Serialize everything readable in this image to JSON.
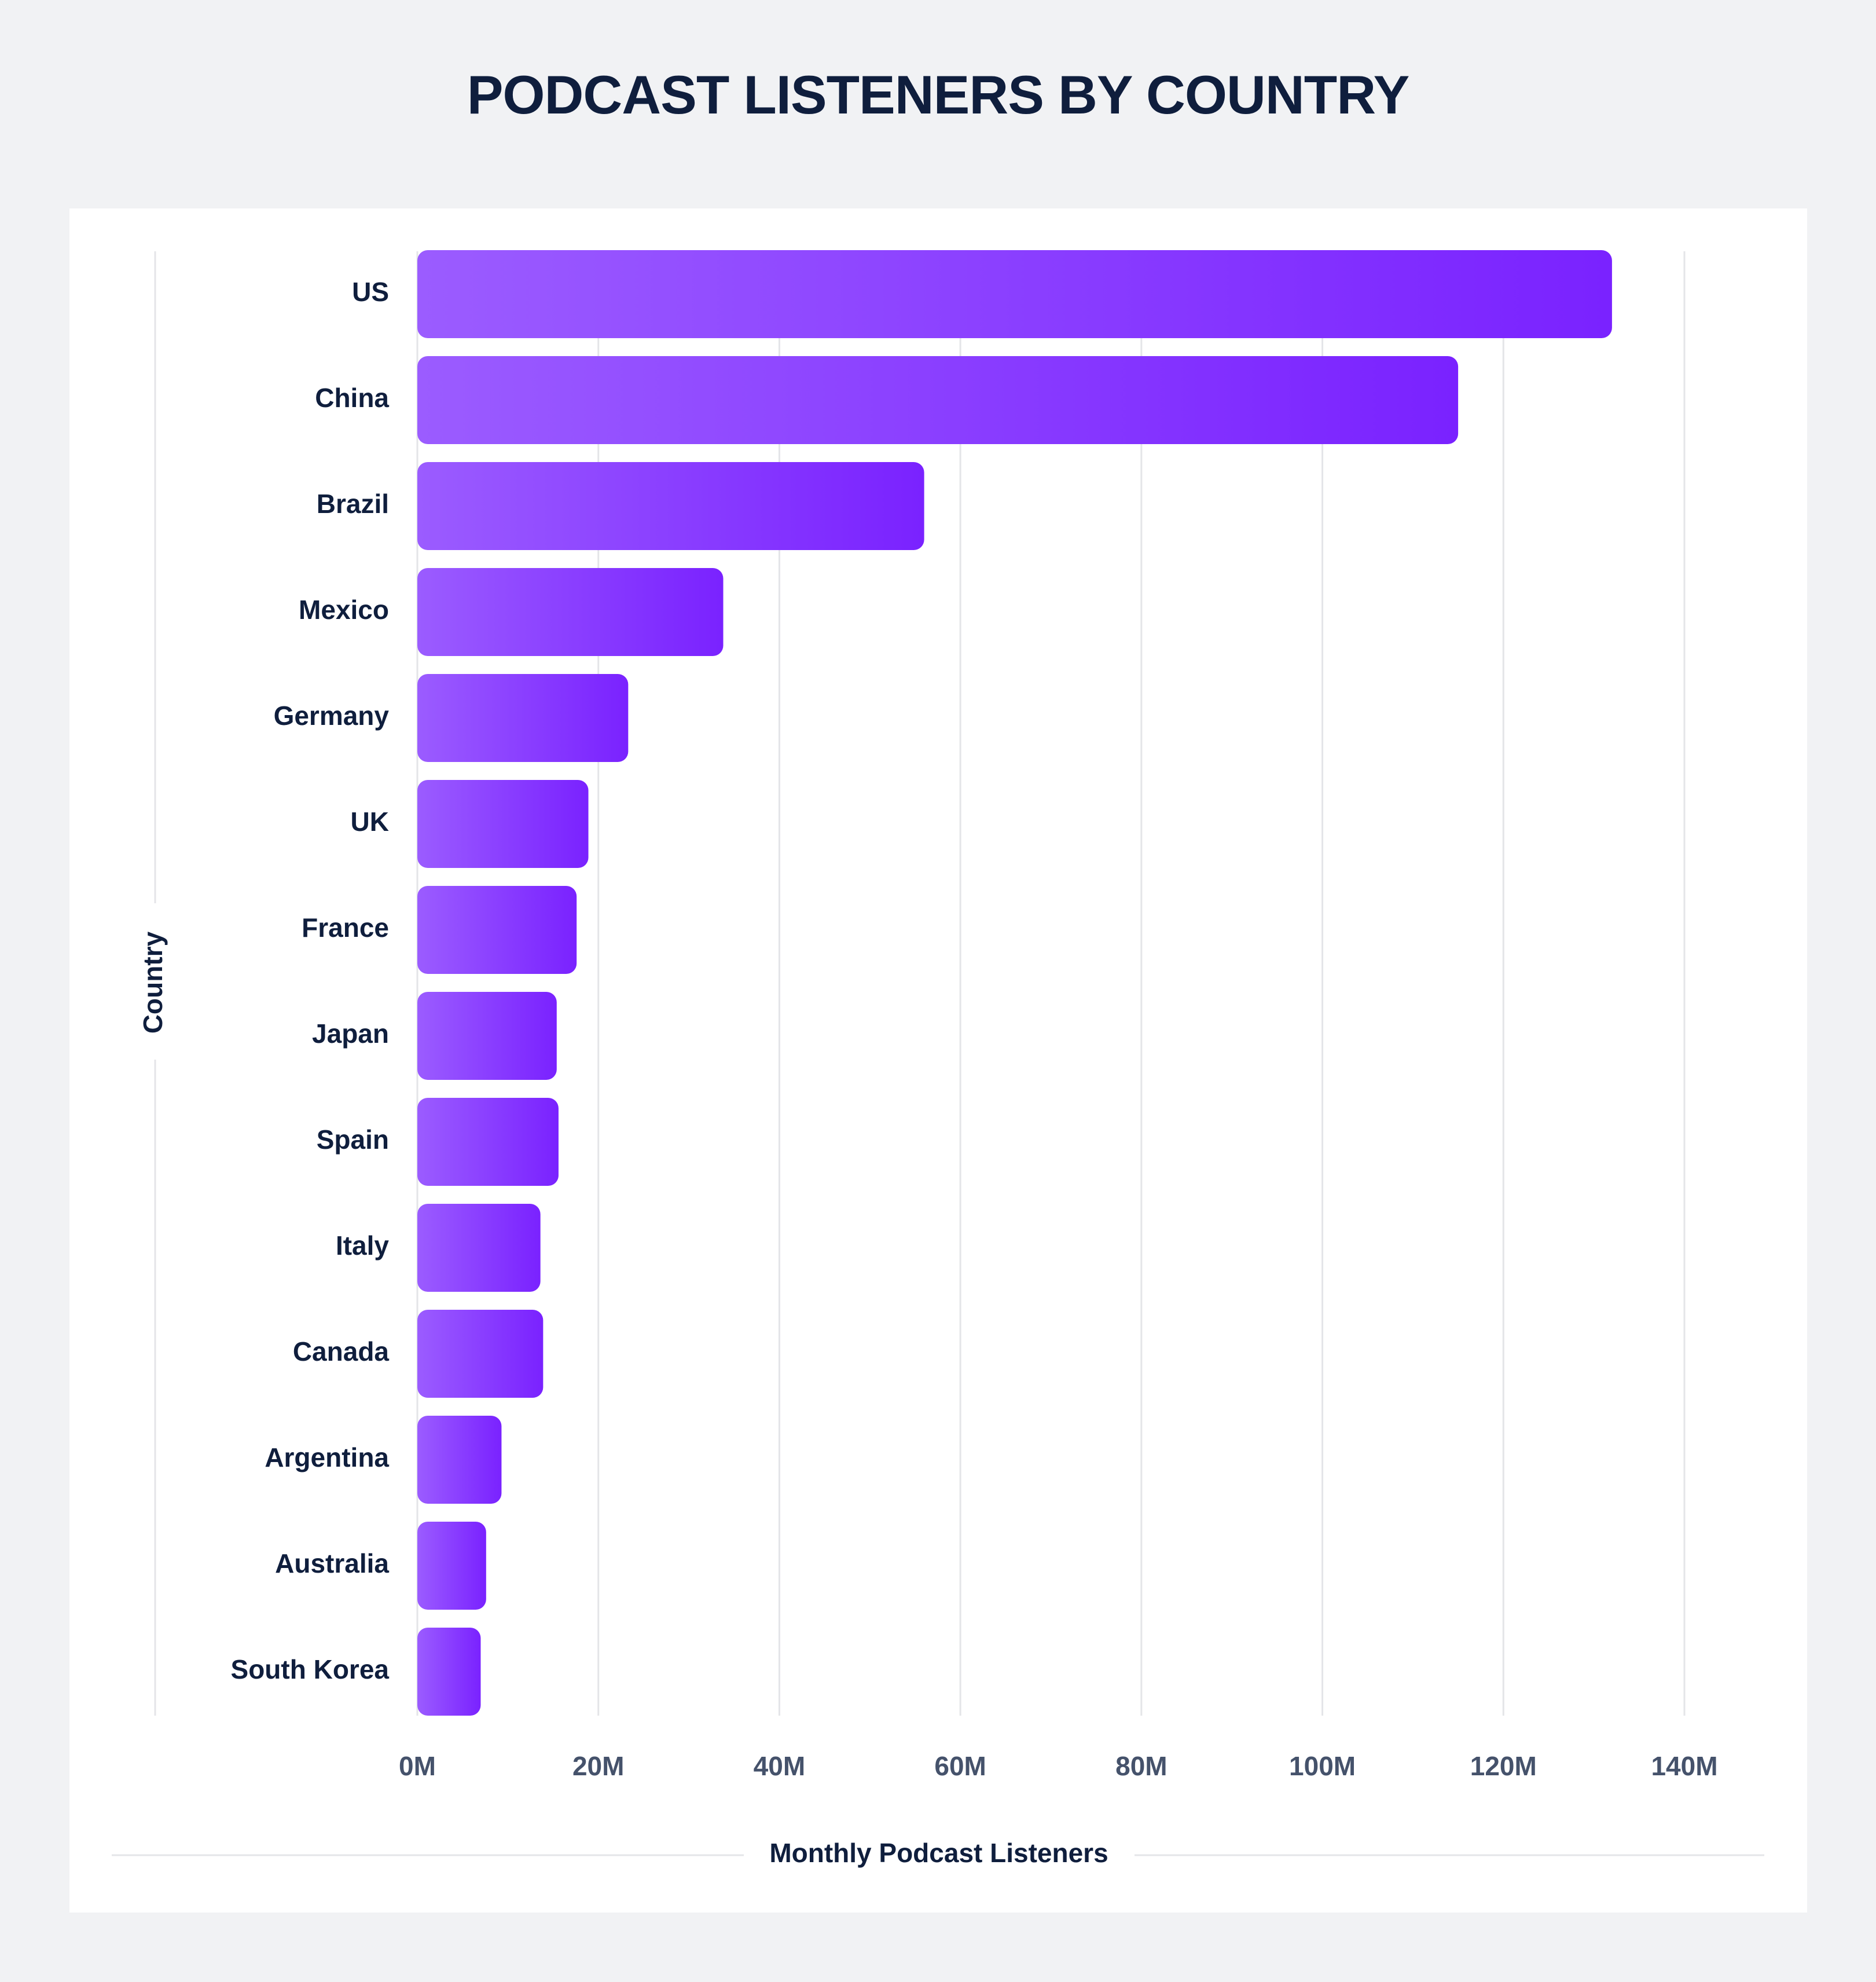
{
  "colors": {
    "background": "#f1f2f4",
    "card": "#ffffff",
    "title": "#0f1e3d",
    "bar_start": "#9b5cff",
    "bar_end": "#7a22ff",
    "grid": "#e4e5e8",
    "tick_text": "#45526b"
  },
  "chart_data": {
    "type": "bar",
    "orientation": "horizontal",
    "title": "PODCAST LISTENERS BY COUNTRY",
    "xlabel": "Monthly Podcast Listeners",
    "ylabel": "Country",
    "categories": [
      "US",
      "China",
      "Brazil",
      "Mexico",
      "Germany",
      "UK",
      "France",
      "Japan",
      "Spain",
      "Italy",
      "Canada",
      "Argentina",
      "Australia",
      "South Korea"
    ],
    "values": [
      132,
      115,
      56,
      33.8,
      23.3,
      18.9,
      17.6,
      15.4,
      15.6,
      13.6,
      13.9,
      9.3,
      7.6,
      7
    ],
    "unit": "M",
    "xlim": [
      0,
      143
    ],
    "xticks": [
      0,
      20,
      40,
      60,
      80,
      100,
      120,
      140
    ],
    "xtick_labels": [
      "0M",
      "20M",
      "40M",
      "60M",
      "80M",
      "100M",
      "120M",
      "140M"
    ],
    "grid": true,
    "legend": "none"
  }
}
